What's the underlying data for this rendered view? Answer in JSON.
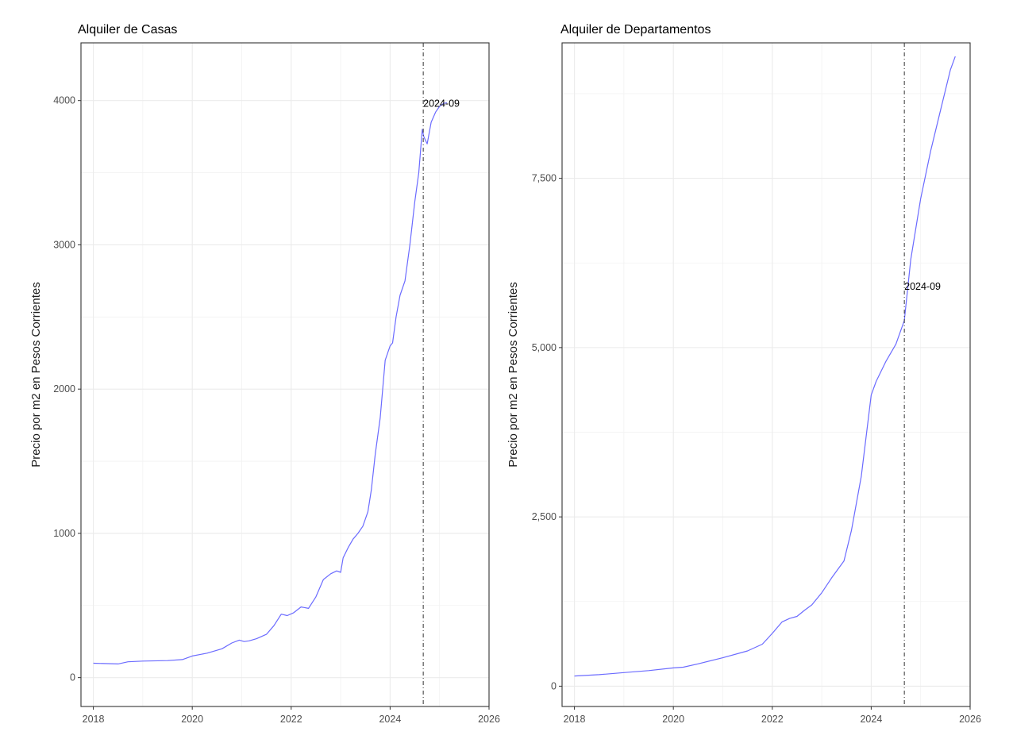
{
  "chart_data": [
    {
      "type": "line",
      "title": "Alquiler de Casas",
      "xlabel": "",
      "ylabel": "Precio por m2 en Pesos Corrientes",
      "xlim": [
        2017.75,
        2026.0
      ],
      "ylim": [
        -200,
        4400
      ],
      "x_ticks": [
        2018,
        2020,
        2022,
        2024,
        2026
      ],
      "x_tick_labels": [
        "2018",
        "2020",
        "2022",
        "2024",
        "2026"
      ],
      "y_ticks": [
        0,
        1000,
        2000,
        3000,
        4000
      ],
      "y_tick_labels": [
        "0",
        "1000",
        "2000",
        "3000",
        "4000"
      ],
      "grid": true,
      "vline": {
        "x": 2024.67,
        "label": "2024-09",
        "label_y": 3980
      },
      "series": [
        {
          "color": "#6b6bff",
          "x": [
            2018.0,
            2018.5,
            2018.7,
            2019.0,
            2019.5,
            2019.8,
            2020.0,
            2020.3,
            2020.6,
            2020.8,
            2020.95,
            2021.05,
            2021.15,
            2021.3,
            2021.5,
            2021.65,
            2021.8,
            2021.92,
            2022.05,
            2022.2,
            2022.35,
            2022.5,
            2022.65,
            2022.8,
            2022.92,
            2023.0,
            2023.05,
            2023.15,
            2023.25,
            2023.35,
            2023.45,
            2023.55,
            2023.62,
            2023.7,
            2023.8,
            2023.9,
            2024.0,
            2024.05,
            2024.12,
            2024.2,
            2024.3,
            2024.4,
            2024.45,
            2024.5,
            2024.58,
            2024.65,
            2024.68,
            2024.75,
            2024.83,
            2024.92,
            2025.0,
            2025.08,
            2025.15
          ],
          "y": [
            100,
            95,
            110,
            115,
            118,
            125,
            150,
            170,
            200,
            240,
            260,
            250,
            255,
            270,
            300,
            360,
            440,
            430,
            450,
            490,
            480,
            560,
            680,
            720,
            740,
            730,
            830,
            900,
            960,
            1000,
            1050,
            1150,
            1300,
            1550,
            1800,
            2200,
            2300,
            2320,
            2500,
            2650,
            2750,
            3000,
            3150,
            3300,
            3500,
            3800,
            3750,
            3700,
            3850,
            3920,
            3960,
            3980,
            3985
          ]
        }
      ]
    },
    {
      "type": "line",
      "title": "Alquiler de Departamentos",
      "xlabel": "",
      "ylabel": "Precio por m2 en Pesos Corrientes",
      "xlim": [
        2017.75,
        2026.0
      ],
      "ylim": [
        -300,
        9500
      ],
      "x_ticks": [
        2018,
        2020,
        2022,
        2024,
        2026
      ],
      "x_tick_labels": [
        "2018",
        "2020",
        "2022",
        "2024",
        "2026"
      ],
      "y_ticks": [
        0,
        2500,
        5000,
        7500
      ],
      "y_tick_labels": [
        "0",
        "2,500",
        "5,000",
        "7,500"
      ],
      "grid": true,
      "vline": {
        "x": 2024.67,
        "label": "2024-09",
        "label_y": 5900
      },
      "series": [
        {
          "color": "#6b6bff",
          "x": [
            2018.0,
            2018.5,
            2019.0,
            2019.5,
            2020.0,
            2020.2,
            2020.5,
            2021.0,
            2021.5,
            2021.8,
            2022.0,
            2022.2,
            2022.35,
            2022.5,
            2022.65,
            2022.8,
            2023.0,
            2023.2,
            2023.45,
            2023.6,
            2023.8,
            2024.0,
            2024.1,
            2024.3,
            2024.5,
            2024.67,
            2024.8,
            2025.0,
            2025.2,
            2025.4,
            2025.6,
            2025.7
          ],
          "y": [
            150,
            170,
            200,
            230,
            270,
            280,
            330,
            420,
            520,
            620,
            780,
            950,
            1000,
            1030,
            1120,
            1200,
            1380,
            1600,
            1850,
            2300,
            3100,
            4300,
            4500,
            4800,
            5050,
            5400,
            6300,
            7200,
            7900,
            8500,
            9100,
            9300
          ]
        }
      ]
    }
  ]
}
